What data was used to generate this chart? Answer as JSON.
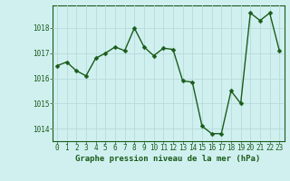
{
  "x": [
    0,
    1,
    2,
    3,
    4,
    5,
    6,
    7,
    8,
    9,
    10,
    11,
    12,
    13,
    14,
    15,
    16,
    17,
    18,
    19,
    20,
    21,
    22,
    23
  ],
  "y": [
    1016.5,
    1016.65,
    1016.3,
    1016.1,
    1016.8,
    1017.0,
    1017.25,
    1017.1,
    1018.0,
    1017.25,
    1016.9,
    1017.2,
    1017.15,
    1015.9,
    1015.85,
    1014.1,
    1013.8,
    1013.8,
    1015.5,
    1015.0,
    1018.6,
    1018.3,
    1018.6,
    1017.1
  ],
  "line_color": "#1a5c1a",
  "marker_color": "#1a5c1a",
  "bg_color": "#d0f0f0",
  "grid_color": "#b8dada",
  "xlabel": "Graphe pression niveau de la mer (hPa)",
  "ylim": [
    1013.5,
    1018.9
  ],
  "xlim": [
    -0.5,
    23.5
  ],
  "yticks": [
    1014,
    1015,
    1016,
    1017,
    1018
  ],
  "xticks": [
    0,
    1,
    2,
    3,
    4,
    5,
    6,
    7,
    8,
    9,
    10,
    11,
    12,
    13,
    14,
    15,
    16,
    17,
    18,
    19,
    20,
    21,
    22,
    23
  ],
  "tick_fontsize": 5.5,
  "xlabel_fontsize": 6.5,
  "marker_size": 2.5,
  "line_width": 1.0
}
